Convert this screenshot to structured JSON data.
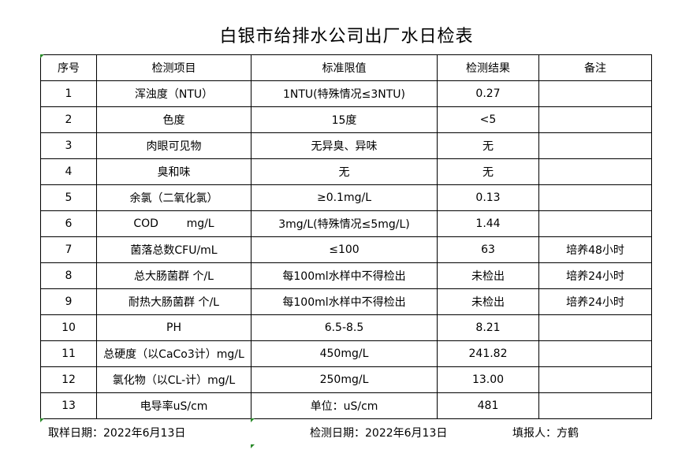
{
  "title": "白银市给排水公司出厂水日检表",
  "columns": [
    "序号",
    "检测项目",
    "标准限值",
    "检测结果",
    "备注"
  ],
  "rows": [
    [
      "1",
      "浑浊度（NTU）",
      "1NTU(特殊情况≤3NTU)",
      "0.27",
      ""
    ],
    [
      "2",
      "色度",
      "15度",
      "<5",
      ""
    ],
    [
      "3",
      "肉眼可见物",
      "无异臭、异味",
      "无",
      ""
    ],
    [
      "4",
      "臭和味",
      "无",
      "无",
      ""
    ],
    [
      "5",
      "余氯（二氧化氯）",
      "≥0.1mg/L",
      "0.13",
      ""
    ],
    [
      "6",
      "COD        mg/L",
      "3mg/L(特殊情况≤5mg/L)",
      "1.44",
      ""
    ],
    [
      "7",
      "菌落总数CFU/mL",
      "≤100",
      "63",
      "培养48小时"
    ],
    [
      "8",
      "总大肠菌群 个/L",
      "每100ml水样中不得检出",
      "未检出",
      "培养24小时"
    ],
    [
      "9",
      "耐热大肠菌群 个/L",
      "每100ml水样中不得检出",
      "未检出",
      "培养24小时"
    ],
    [
      "10",
      "PH",
      "6.5-8.5",
      "8.21",
      ""
    ],
    [
      "11",
      "总硬度（以CaCo3计）mg/L",
      "450mg/L",
      "241.82",
      ""
    ],
    [
      "12",
      "氯化物（以CL-计）mg/L",
      "250mg/L",
      "13.00",
      ""
    ],
    [
      "13",
      "电导率uS/cm",
      "单位：uS/cm",
      "481",
      ""
    ]
  ],
  "footer": {
    "sample_date": "取样日期：2022年6月13日",
    "test_date": "检测日期：2022年6月13日",
    "reporter": "填报人：方鹤"
  }
}
